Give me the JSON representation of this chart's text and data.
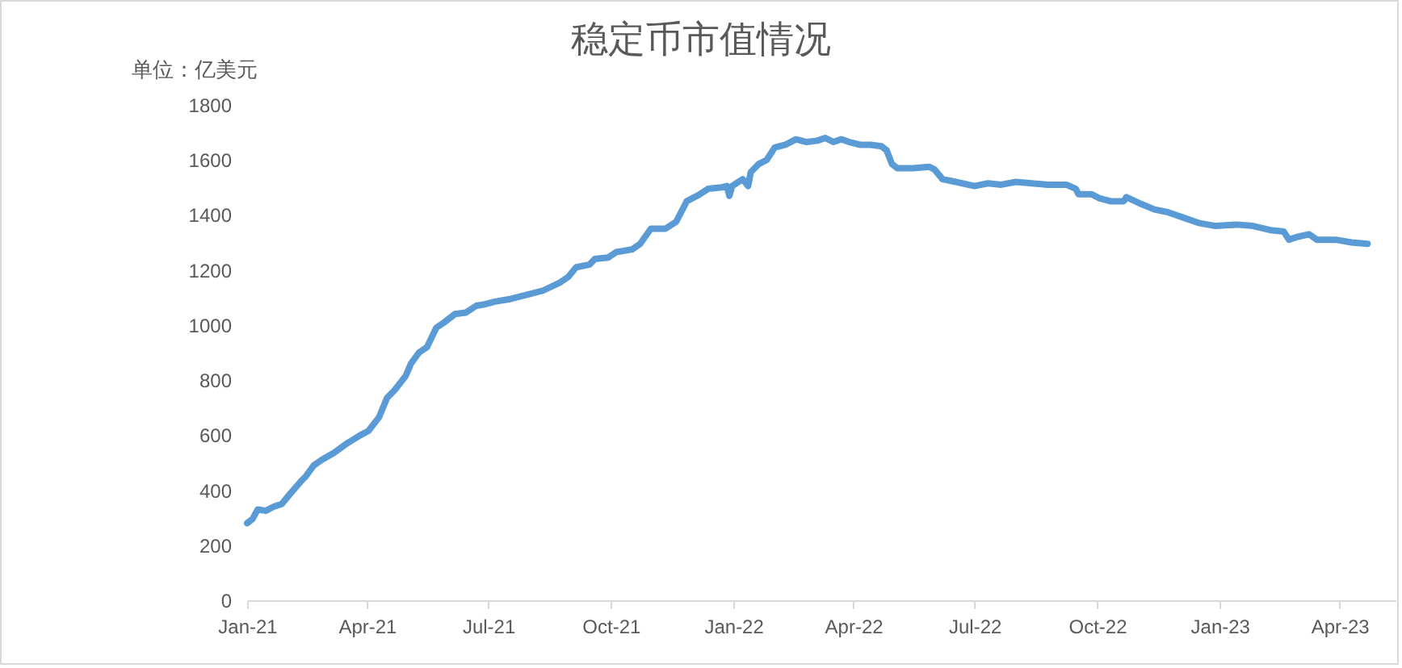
{
  "chart_data": {
    "type": "line",
    "title": "稳定币市值情况",
    "ylabel": "单位：亿美元",
    "x": [
      "2021-01-01",
      "2021-01-05",
      "2021-01-09",
      "2021-01-15",
      "2021-01-21",
      "2021-01-27",
      "2021-02-02",
      "2021-02-10",
      "2021-02-14",
      "2021-02-20",
      "2021-02-26",
      "2021-03-07",
      "2021-03-17",
      "2021-03-27",
      "2021-04-02",
      "2021-04-10",
      "2021-04-16",
      "2021-04-22",
      "2021-04-30",
      "2021-05-04",
      "2021-05-10",
      "2021-05-16",
      "2021-05-23",
      "2021-05-29",
      "2021-06-06",
      "2021-06-14",
      "2021-06-22",
      "2021-06-28",
      "2021-07-06",
      "2021-07-18",
      "2021-07-30",
      "2021-08-11",
      "2021-08-24",
      "2021-08-30",
      "2021-09-05",
      "2021-09-15",
      "2021-09-19",
      "2021-09-29",
      "2021-10-05",
      "2021-10-17",
      "2021-10-23",
      "2021-10-31",
      "2021-11-11",
      "2021-11-19",
      "2021-11-27",
      "2021-12-05",
      "2021-12-13",
      "2021-12-23",
      "2021-12-27",
      "2021-12-29",
      "2021-12-31",
      "2022-01-08",
      "2022-01-12",
      "2022-01-14",
      "2022-01-20",
      "2022-01-26",
      "2022-02-01",
      "2022-02-09",
      "2022-02-17",
      "2022-02-25",
      "2022-03-05",
      "2022-03-11",
      "2022-03-17",
      "2022-03-23",
      "2022-03-29",
      "2022-04-06",
      "2022-04-14",
      "2022-04-22",
      "2022-04-26",
      "2022-04-30",
      "2022-05-04",
      "2022-05-16",
      "2022-05-28",
      "2022-06-01",
      "2022-06-07",
      "2022-06-17",
      "2022-07-01",
      "2022-07-11",
      "2022-07-21",
      "2022-08-01",
      "2022-08-13",
      "2022-08-25",
      "2022-09-08",
      "2022-09-15",
      "2022-09-17",
      "2022-09-27",
      "2022-10-03",
      "2022-10-11",
      "2022-10-21",
      "2022-10-23",
      "2022-11-03",
      "2022-11-13",
      "2022-11-23",
      "2022-12-05",
      "2022-12-17",
      "2022-12-29",
      "2023-01-14",
      "2023-01-26",
      "2023-02-08",
      "2023-02-18",
      "2023-02-22",
      "2023-02-28",
      "2023-03-09",
      "2023-03-15",
      "2023-03-29",
      "2023-04-10",
      "2023-04-22"
    ],
    "series": [
      {
        "color": "#5b9bd5",
        "values": [
          280,
          295,
          330,
          325,
          340,
          350,
          385,
          430,
          450,
          490,
          510,
          535,
          570,
          600,
          615,
          665,
          735,
          765,
          815,
          860,
          900,
          920,
          990,
          1010,
          1040,
          1045,
          1070,
          1075,
          1085,
          1095,
          1110,
          1125,
          1155,
          1175,
          1210,
          1220,
          1240,
          1245,
          1265,
          1275,
          1295,
          1350,
          1350,
          1375,
          1450,
          1470,
          1495,
          1500,
          1505,
          1470,
          1505,
          1530,
          1505,
          1555,
          1585,
          1600,
          1645,
          1655,
          1675,
          1665,
          1670,
          1680,
          1665,
          1675,
          1665,
          1655,
          1655,
          1650,
          1635,
          1585,
          1570,
          1570,
          1575,
          1565,
          1530,
          1520,
          1505,
          1515,
          1510,
          1520,
          1515,
          1510,
          1510,
          1495,
          1475,
          1475,
          1460,
          1450,
          1450,
          1465,
          1440,
          1420,
          1410,
          1390,
          1370,
          1360,
          1365,
          1360,
          1345,
          1340,
          1310,
          1320,
          1330,
          1310,
          1310,
          1300,
          1295
        ]
      }
    ],
    "xlim": [
      "2021-01-01",
      "2023-05-13"
    ],
    "xticks": [
      {
        "value": "2021-01-01",
        "label": "Jan-21"
      },
      {
        "value": "2021-04-01",
        "label": "Apr-21"
      },
      {
        "value": "2021-07-01",
        "label": "Jul-21"
      },
      {
        "value": "2021-10-01",
        "label": "Oct-21"
      },
      {
        "value": "2022-01-01",
        "label": "Jan-22"
      },
      {
        "value": "2022-04-01",
        "label": "Apr-22"
      },
      {
        "value": "2022-07-01",
        "label": "Jul-22"
      },
      {
        "value": "2022-10-01",
        "label": "Oct-22"
      },
      {
        "value": "2023-01-01",
        "label": "Jan-23"
      },
      {
        "value": "2023-04-01",
        "label": "Apr-23"
      }
    ],
    "ylim": [
      0,
      1800
    ],
    "yticks": [
      0,
      200,
      400,
      600,
      800,
      1000,
      1200,
      1400,
      1600,
      1800
    ]
  }
}
